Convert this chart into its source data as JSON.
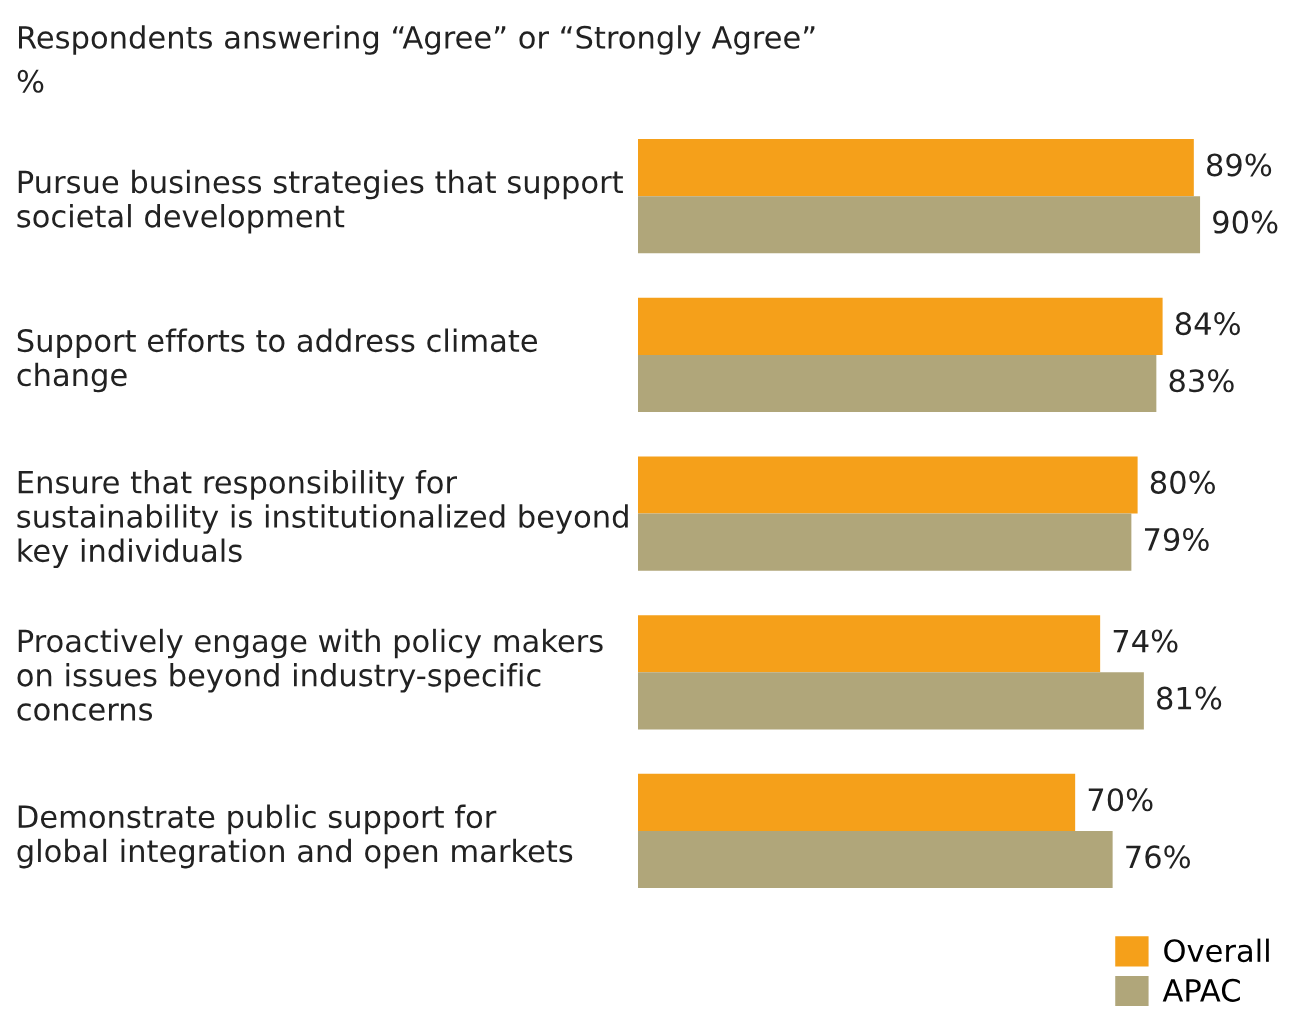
{
  "chart_data": {
    "type": "bar",
    "orientation": "horizontal",
    "title": "Respondents answering “Agree” or “Strongly Agree”",
    "subtitle": "%",
    "categories": [
      "Pursue business strategies that support\nsocietal development",
      "Support efforts to address climate\nchange",
      "Ensure that responsibility for\nsustainability is institutionalized beyond\nkey individuals",
      "Proactively engage with policy makers\non issues beyond industry-specific\nconcerns",
      "Demonstrate public support for\nglobal integration and open markets"
    ],
    "series": [
      {
        "name": "Overall",
        "color": "#f5a01a",
        "values": [
          89,
          84,
          80,
          74,
          70
        ],
        "value_labels": [
          "89%",
          "84%",
          "80%",
          "74%",
          "70%"
        ]
      },
      {
        "name": "APAC",
        "color": "#b0a67a",
        "values": [
          90,
          83,
          79,
          81,
          76
        ],
        "value_labels": [
          "90%",
          "83%",
          "79%",
          "81%",
          "76%"
        ]
      }
    ],
    "legend": "bottom right",
    "grid": false
  }
}
